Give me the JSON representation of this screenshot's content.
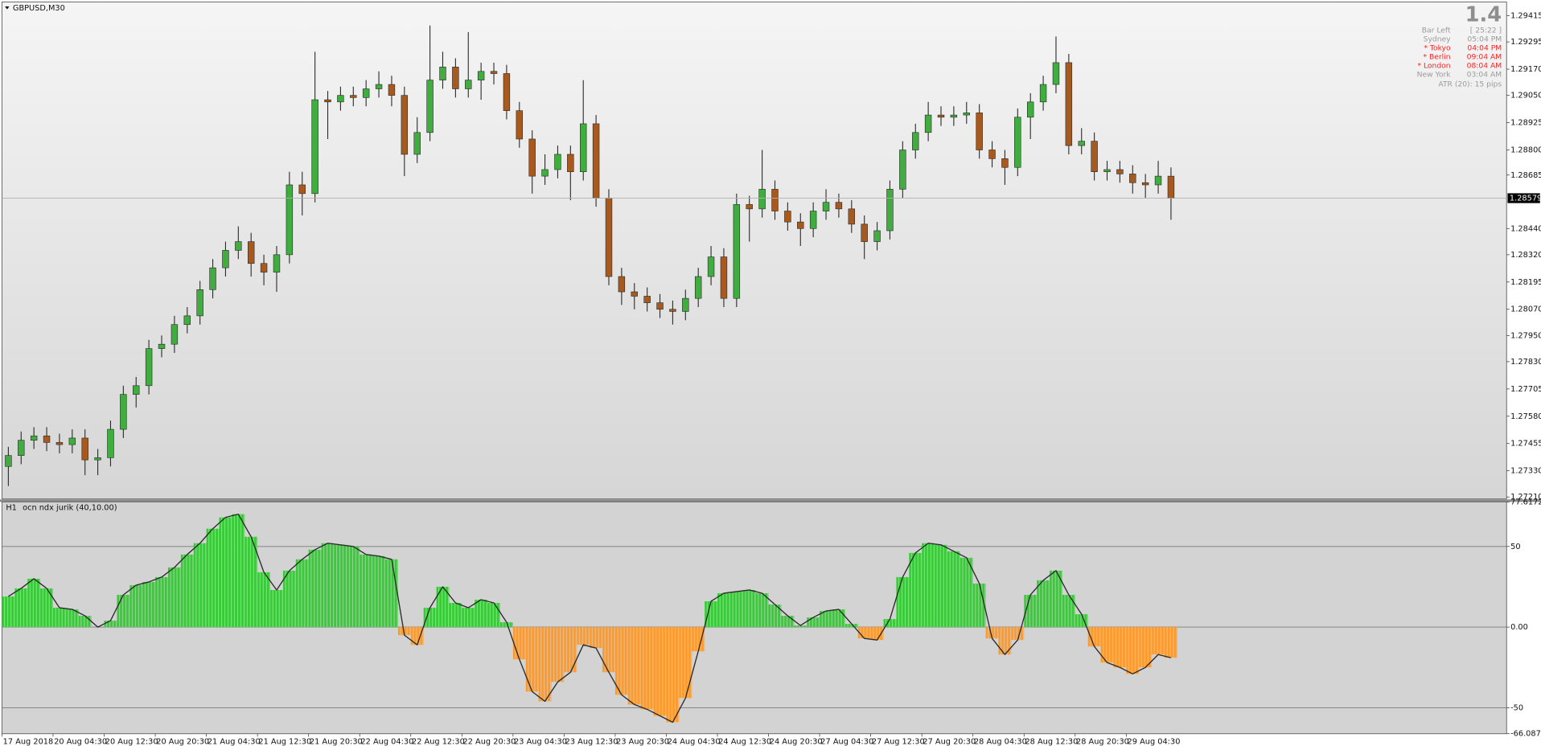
{
  "chart_data": [
    {
      "type": "candlestick",
      "title": "GBPUSD,M30",
      "current_price": 1.28579,
      "current_price_label": "1.28579",
      "up_color": "#3fae3f",
      "down_color": "#a85a1e",
      "wick_color": "#2a2a2a",
      "ylim": [
        1.27201,
        1.29478
      ],
      "yticks": [
        1.29415,
        1.29295,
        {
          "value": 1.2917,
          "label": "1.29170"
        },
        {
          "value": 1.2905,
          "label": "1.29050"
        },
        1.28925,
        {
          "value": 1.288,
          "label": "1.28800"
        },
        1.28685,
        {
          "value": 1.2844,
          "label": "1.28440"
        },
        {
          "value": 1.2832,
          "label": "1.28320"
        },
        1.28195,
        {
          "value": 1.2807,
          "label": "1.28070"
        },
        {
          "value": 1.2795,
          "label": "1.27950"
        },
        {
          "value": 1.2783,
          "label": "1.27830"
        },
        1.27705,
        {
          "value": 1.2758,
          "label": "1.27580"
        },
        1.27455,
        {
          "value": 1.2733,
          "label": "1.27330"
        },
        {
          "value": 1.2721,
          "label": "1.27210"
        }
      ],
      "categories": [
        "17 Aug 2018",
        null,
        null,
        null,
        "20 Aug 04:30",
        null,
        null,
        null,
        "20 Aug 12:30",
        null,
        null,
        null,
        "20 Aug 20:30",
        null,
        null,
        null,
        "21 Aug 04:30",
        null,
        null,
        null,
        "21 Aug 12:30",
        null,
        null,
        null,
        "21 Aug 20:30",
        null,
        null,
        null,
        "22 Aug 04:30",
        null,
        null,
        null,
        "22 Aug 12:30",
        null,
        null,
        null,
        "22 Aug 20:30",
        null,
        null,
        null,
        "23 Aug 04:30",
        null,
        null,
        null,
        "23 Aug 12:30",
        null,
        null,
        null,
        "23 Aug 20:30",
        null,
        null,
        null,
        "24 Aug 04:30",
        null,
        null,
        null,
        "24 Aug 12:30",
        null,
        null,
        null,
        "24 Aug 20:30",
        null,
        null,
        null,
        "27 Aug 04:30",
        null,
        null,
        null,
        "27 Aug 12:30",
        null,
        null,
        null,
        "27 Aug 20:30",
        null,
        null,
        null,
        "28 Aug 04:30",
        null,
        null,
        null,
        "28 Aug 12:30",
        null,
        null,
        null,
        "28 Aug 20:30",
        null,
        null,
        null,
        "29 Aug 04:30",
        null,
        null,
        null
      ],
      "open": [
        1.2735,
        1.274,
        1.2747,
        1.2749,
        1.2746,
        1.2745,
        1.2748,
        1.2738,
        1.2739,
        1.2752,
        1.2768,
        1.2772,
        1.2789,
        1.2791,
        1.28,
        1.2804,
        1.2816,
        1.2826,
        1.2834,
        1.2838,
        1.2828,
        1.2824,
        1.2832,
        1.2864,
        1.286,
        1.2903,
        1.2902,
        1.2905,
        1.2904,
        1.2908,
        1.291,
        1.2905,
        1.2878,
        1.2888,
        1.2912,
        1.2918,
        1.2908,
        1.2912,
        1.2916,
        1.2915,
        1.2898,
        1.2885,
        1.2868,
        1.2871,
        1.2878,
        1.287,
        1.2892,
        1.2858,
        1.2822,
        1.2815,
        1.2813,
        1.281,
        1.2807,
        1.2806,
        1.2812,
        1.2822,
        1.2831,
        1.2812,
        1.2855,
        1.2853,
        1.2862,
        1.2852,
        1.2847,
        1.2844,
        1.2852,
        1.2856,
        1.2853,
        1.2846,
        1.2838,
        1.2843,
        1.2862,
        1.288,
        1.2888,
        1.2896,
        1.2895,
        1.2896,
        1.2897,
        1.288,
        1.2876,
        1.2872,
        1.2895,
        1.2902,
        1.291,
        1.292,
        1.2882,
        1.2884,
        1.287,
        1.2871,
        1.2869,
        1.2865,
        1.2864,
        1.2868
      ],
      "high": [
        1.2744,
        1.2751,
        1.2753,
        1.2753,
        1.275,
        1.2752,
        1.2752,
        1.2743,
        1.2756,
        1.2772,
        1.2776,
        1.2793,
        1.2795,
        1.2804,
        1.2808,
        1.282,
        1.283,
        1.2838,
        1.2845,
        1.2842,
        1.2832,
        1.2836,
        1.287,
        1.287,
        1.2925,
        1.2907,
        1.2909,
        1.2909,
        1.2912,
        1.2916,
        1.2914,
        1.2909,
        1.2895,
        1.2937,
        1.2925,
        1.2922,
        1.2934,
        1.292,
        1.292,
        1.2919,
        1.2902,
        1.2889,
        1.2878,
        1.2882,
        1.2882,
        1.2912,
        1.2896,
        1.2862,
        1.2826,
        1.2819,
        1.2817,
        1.2814,
        1.2811,
        1.2816,
        1.2826,
        1.2836,
        1.2835,
        1.286,
        1.2859,
        1.288,
        1.2866,
        1.2856,
        1.2851,
        1.2856,
        1.2862,
        1.286,
        1.2857,
        1.285,
        1.2847,
        1.2866,
        1.2884,
        1.2892,
        1.2902,
        1.29,
        1.29,
        1.2902,
        1.2901,
        1.2884,
        1.288,
        1.2899,
        1.2906,
        1.2914,
        1.2932,
        1.2924,
        1.289,
        1.2888,
        1.2875,
        1.2875,
        1.2873,
        1.2869,
        1.2875,
        1.2872
      ],
      "low": [
        1.2726,
        1.2736,
        1.2743,
        1.2742,
        1.2741,
        1.2741,
        1.2731,
        1.2731,
        1.2735,
        1.2748,
        1.2762,
        1.2768,
        1.2785,
        1.2787,
        1.2796,
        1.28,
        1.2812,
        1.2822,
        1.283,
        1.2822,
        1.2818,
        1.2815,
        1.2828,
        1.285,
        1.2856,
        1.2885,
        1.2898,
        1.29,
        1.29,
        1.2904,
        1.29,
        1.2868,
        1.2874,
        1.2884,
        1.2908,
        1.2904,
        1.2904,
        1.2903,
        1.291,
        1.2894,
        1.2881,
        1.286,
        1.2864,
        1.2867,
        1.2857,
        1.2866,
        1.2854,
        1.2818,
        1.2809,
        1.2807,
        1.2806,
        1.2803,
        1.28,
        1.2802,
        1.2808,
        1.2818,
        1.2808,
        1.2808,
        1.2838,
        1.2849,
        1.2848,
        1.2843,
        1.2836,
        1.284,
        1.2848,
        1.2849,
        1.2842,
        1.283,
        1.2834,
        1.2839,
        1.2858,
        1.2876,
        1.2884,
        1.2891,
        1.2891,
        1.2892,
        1.2876,
        1.2872,
        1.2864,
        1.2868,
        1.2885,
        1.2898,
        1.2906,
        1.2878,
        1.2878,
        1.2866,
        1.2866,
        1.2865,
        1.286,
        1.2858,
        1.286,
        1.2848
      ],
      "close": [
        1.274,
        1.2747,
        1.2749,
        1.2746,
        1.2745,
        1.2748,
        1.2738,
        1.2739,
        1.2752,
        1.2768,
        1.2772,
        1.2789,
        1.2791,
        1.28,
        1.2804,
        1.2816,
        1.2826,
        1.2834,
        1.2838,
        1.2828,
        1.2824,
        1.2832,
        1.2864,
        1.286,
        1.2903,
        1.2902,
        1.2905,
        1.2904,
        1.2908,
        1.291,
        1.2905,
        1.2878,
        1.2888,
        1.2912,
        1.2918,
        1.2908,
        1.2912,
        1.2916,
        1.2915,
        1.2898,
        1.2885,
        1.2868,
        1.2871,
        1.2878,
        1.287,
        1.2892,
        1.2858,
        1.2822,
        1.2815,
        1.2813,
        1.281,
        1.2807,
        1.2806,
        1.2812,
        1.2822,
        1.2831,
        1.2812,
        1.2855,
        1.2853,
        1.2862,
        1.2852,
        1.2847,
        1.2844,
        1.2852,
        1.2856,
        1.2853,
        1.2846,
        1.2838,
        1.2843,
        1.2862,
        1.288,
        1.2888,
        1.2896,
        1.2895,
        1.2896,
        1.2897,
        1.288,
        1.2876,
        1.2872,
        1.2895,
        1.2902,
        1.291,
        1.292,
        1.2882,
        1.2884,
        1.287,
        1.2871,
        1.2869,
        1.2865,
        1.2864,
        1.2868,
        1.2858
      ]
    },
    {
      "type": "histogram_line",
      "timeframe": "H1",
      "title": "ocn ndx jurik (40,10.00)",
      "positive_color": "#35cc35",
      "negative_color": "#ff9a2a",
      "line_color": "#2b2b2b",
      "ylim": [
        -66.0872,
        77.6172
      ],
      "yticks": [
        77.6172,
        50,
        {
          "value": 0,
          "label": "0.00"
        },
        -50,
        -66.0872
      ],
      "values": [
        19,
        24,
        30,
        24,
        12,
        11,
        7,
        0,
        4,
        20,
        26,
        28,
        31,
        37,
        45,
        52,
        61,
        68,
        70,
        56,
        34,
        23,
        35,
        42,
        48,
        52,
        51,
        50,
        45,
        44,
        42,
        -5,
        -11,
        12,
        25,
        15,
        12,
        17,
        15,
        3,
        -20,
        -40,
        -46,
        -34,
        -28,
        -11,
        -13,
        -28,
        -42,
        -48,
        -51,
        -55,
        -59,
        -44,
        -15,
        16,
        21,
        22,
        23,
        21,
        14,
        7,
        1,
        6,
        10,
        11,
        2,
        -7,
        -8,
        5,
        31,
        46,
        52,
        51,
        47,
        43,
        27,
        -7,
        -17,
        -8,
        20,
        29,
        35,
        20,
        8,
        -12,
        -22,
        -25,
        -29,
        -25,
        -17,
        -19
      ]
    }
  ],
  "info_panel": {
    "spread": "1.4",
    "rows": [
      {
        "label": "Bar Left",
        "value": "[ 25:22 ]",
        "color": "#9a9a9a"
      },
      {
        "label": "Sydney",
        "value": "05:04 PM",
        "color": "#9a9a9a"
      },
      {
        "label": "* Tokyo",
        "value": "04:04 PM",
        "color": "#ff2020"
      },
      {
        "label": "* Berlin",
        "value": "09:04 AM",
        "color": "#ff2020"
      },
      {
        "label": "* London",
        "value": "08:04 AM",
        "color": "#ff2020"
      },
      {
        "label": "New York",
        "value": "03:04 AM",
        "color": "#9a9a9a"
      }
    ],
    "atr": "ATR (20): 15 pips"
  }
}
